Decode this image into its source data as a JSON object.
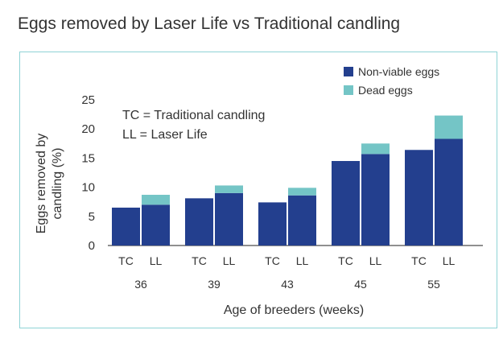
{
  "page_title": "Eggs removed by Laser Life vs Traditional candling",
  "colors": {
    "non_viable": "#233f8e",
    "dead": "#74c5c6",
    "frame": "#8fd3d6"
  },
  "annotations": [
    "TC = Traditional candling",
    "LL =  Laser Life"
  ],
  "chart_data": {
    "type": "bar",
    "stacked": true,
    "title": "Eggs removed by Laser Life vs Traditional candling",
    "xlabel": "Age of breeders (weeks)",
    "ylabel_lines": [
      "Eggs removed by",
      "candling (%)"
    ],
    "ylim": [
      0,
      25
    ],
    "yticks": [
      0,
      5,
      10,
      15,
      20,
      25
    ],
    "groups": [
      "36",
      "39",
      "43",
      "45",
      "55"
    ],
    "methods": [
      "TC",
      "LL"
    ],
    "legend": {
      "position": "top-right",
      "entries": [
        "Non-viable eggs",
        "Dead eggs"
      ]
    },
    "bars": [
      {
        "group": "36",
        "method": "TC",
        "non_viable": 6.5,
        "dead": 0
      },
      {
        "group": "36",
        "method": "LL",
        "non_viable": 7.0,
        "dead": 1.7
      },
      {
        "group": "39",
        "method": "TC",
        "non_viable": 8.1,
        "dead": 0
      },
      {
        "group": "39",
        "method": "LL",
        "non_viable": 9.0,
        "dead": 1.3
      },
      {
        "group": "43",
        "method": "TC",
        "non_viable": 7.4,
        "dead": 0
      },
      {
        "group": "43",
        "method": "LL",
        "non_viable": 8.6,
        "dead": 1.3
      },
      {
        "group": "45",
        "method": "TC",
        "non_viable": 14.5,
        "dead": 0
      },
      {
        "group": "45",
        "method": "LL",
        "non_viable": 15.7,
        "dead": 1.8
      },
      {
        "group": "55",
        "method": "TC",
        "non_viable": 16.4,
        "dead": 0
      },
      {
        "group": "55",
        "method": "LL",
        "non_viable": 18.3,
        "dead": 4.0
      }
    ]
  }
}
